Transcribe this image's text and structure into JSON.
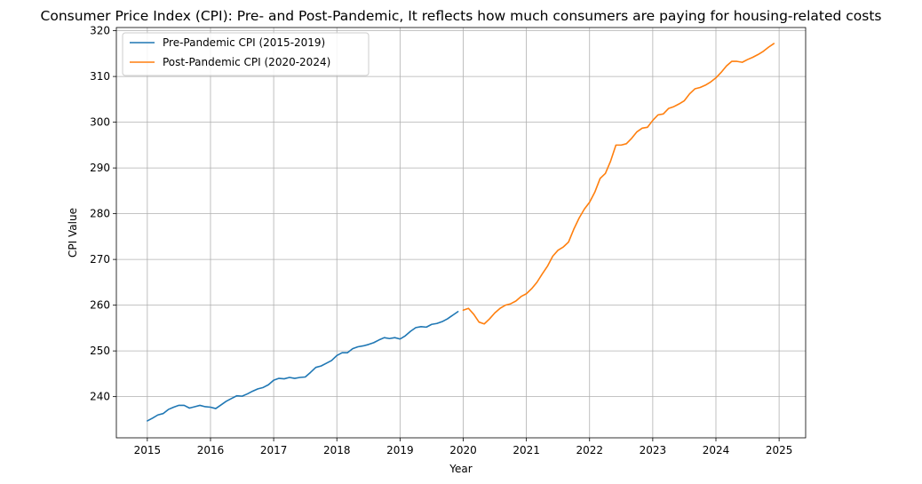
{
  "chart_data": {
    "type": "line",
    "title": "Consumer Price Index (CPI): Pre- and Post-Pandemic, It reflects how much consumers are paying for housing-related costs",
    "xlabel": "Year",
    "ylabel": "CPI Value",
    "xlim": [
      2014.51,
      2025.42
    ],
    "ylim": [
      231.0,
      320.7
    ],
    "x_ticks": [
      2015,
      2016,
      2017,
      2018,
      2019,
      2020,
      2021,
      2022,
      2023,
      2024,
      2025
    ],
    "x_tick_labels": [
      "2015",
      "2016",
      "2017",
      "2018",
      "2019",
      "2020",
      "2021",
      "2022",
      "2023",
      "2024",
      "2025"
    ],
    "y_ticks": [
      240,
      250,
      260,
      270,
      280,
      290,
      300,
      310,
      320
    ],
    "y_tick_labels": [
      "240",
      "250",
      "260",
      "270",
      "280",
      "290",
      "300",
      "310",
      "320"
    ],
    "grid": true,
    "legend_position": "top-left",
    "series": [
      {
        "name": "Pre-Pandemic CPI (2015-2019)",
        "color": "#1f77b4",
        "x": [
          2015.0,
          2015.083,
          2015.167,
          2015.25,
          2015.333,
          2015.417,
          2015.5,
          2015.583,
          2015.667,
          2015.75,
          2015.833,
          2015.917,
          2016.0,
          2016.083,
          2016.167,
          2016.25,
          2016.333,
          2016.417,
          2016.5,
          2016.583,
          2016.667,
          2016.75,
          2016.833,
          2016.917,
          2017.0,
          2017.083,
          2017.167,
          2017.25,
          2017.333,
          2017.417,
          2017.5,
          2017.583,
          2017.667,
          2017.75,
          2017.833,
          2017.917,
          2018.0,
          2018.083,
          2018.167,
          2018.25,
          2018.333,
          2018.417,
          2018.5,
          2018.583,
          2018.667,
          2018.75,
          2018.833,
          2018.917,
          2019.0,
          2019.083,
          2019.167,
          2019.25,
          2019.333,
          2019.417,
          2019.5,
          2019.583,
          2019.667,
          2019.75,
          2019.833,
          2019.917
        ],
        "y": [
          234.7,
          235.3,
          236.0,
          236.3,
          237.2,
          237.7,
          238.1,
          238.1,
          237.5,
          237.8,
          238.1,
          237.8,
          237.7,
          237.4,
          238.2,
          239.0,
          239.6,
          240.2,
          240.1,
          240.6,
          241.2,
          241.7,
          242.0,
          242.6,
          243.6,
          244.0,
          243.9,
          244.2,
          244.0,
          244.2,
          244.3,
          245.3,
          246.4,
          246.7,
          247.3,
          247.9,
          249.0,
          249.6,
          249.6,
          250.5,
          250.9,
          251.1,
          251.4,
          251.8,
          252.4,
          252.9,
          252.7,
          252.9,
          252.6,
          253.3,
          254.3,
          255.1,
          255.3,
          255.2,
          255.8,
          256.0,
          256.4,
          257.0,
          257.8,
          258.6
        ]
      },
      {
        "name": "Post-Pandemic CPI (2020-2024)",
        "color": "#ff7f0e",
        "x": [
          2020.0,
          2020.083,
          2020.167,
          2020.25,
          2020.333,
          2020.417,
          2020.5,
          2020.583,
          2020.667,
          2020.75,
          2020.833,
          2020.917,
          2021.0,
          2021.083,
          2021.167,
          2021.25,
          2021.333,
          2021.417,
          2021.5,
          2021.583,
          2021.667,
          2021.75,
          2021.833,
          2021.917,
          2022.0,
          2022.083,
          2022.167,
          2022.25,
          2022.333,
          2022.417,
          2022.5,
          2022.583,
          2022.667,
          2022.75,
          2022.833,
          2022.917,
          2023.0,
          2023.083,
          2023.167,
          2023.25,
          2023.333,
          2023.417,
          2023.5,
          2023.583,
          2023.667,
          2023.75,
          2023.833,
          2023.917,
          2024.0,
          2024.083,
          2024.167,
          2024.25,
          2024.333,
          2024.417,
          2024.5,
          2024.583,
          2024.667,
          2024.75,
          2024.833,
          2024.917
        ],
        "y": [
          258.9,
          259.3,
          258.0,
          256.3,
          255.9,
          257.0,
          258.3,
          259.3,
          260.0,
          260.3,
          260.9,
          261.9,
          262.5,
          263.6,
          265.0,
          266.8,
          268.5,
          270.7,
          272.0,
          272.7,
          273.8,
          276.6,
          279.0,
          281.0,
          282.5,
          284.7,
          287.7,
          288.8,
          291.5,
          295.0,
          295.0,
          295.3,
          296.5,
          297.9,
          298.7,
          298.9,
          300.4,
          301.6,
          301.8,
          303.0,
          303.4,
          304.0,
          304.7,
          306.2,
          307.3,
          307.6,
          308.1,
          308.8,
          309.7,
          310.9,
          312.3,
          313.3,
          313.3,
          313.1,
          313.7,
          314.2,
          314.8,
          315.5,
          316.4,
          317.2
        ]
      }
    ]
  }
}
